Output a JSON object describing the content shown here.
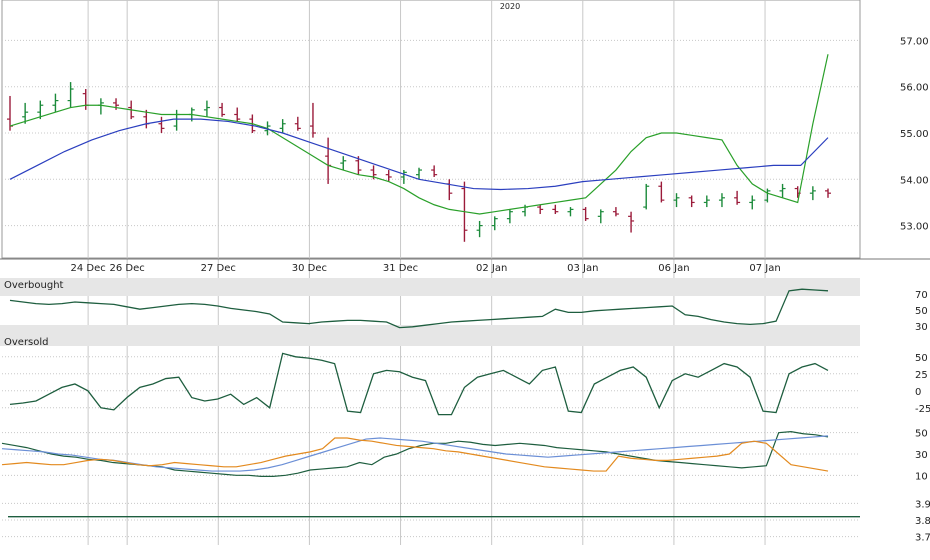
{
  "chart_data": {
    "type": "candlestick",
    "year_label": "2020",
    "x_ticks": [
      {
        "label": "24 Dec",
        "i": 6
      },
      {
        "label": "26 Dec",
        "i": 9
      },
      {
        "label": "27 Dec",
        "i": 16
      },
      {
        "label": "30 Dec",
        "i": 23
      },
      {
        "label": "31 Dec",
        "i": 30
      },
      {
        "label": "02 Jan",
        "i": 37
      },
      {
        "label": "03 Jan",
        "i": 44
      },
      {
        "label": "06 Jan",
        "i": 51
      },
      {
        "label": "07 Jan",
        "i": 58
      }
    ],
    "price": {
      "ylim": [
        52.3,
        57.7
      ],
      "yticks": [
        "57.00",
        "56.00",
        "55.00",
        "54.00",
        "53.00"
      ],
      "grid": true,
      "candles": [
        [
          55.3,
          55.8,
          55.05,
          55.15
        ],
        [
          55.35,
          55.65,
          55.2,
          55.45
        ],
        [
          55.45,
          55.7,
          55.3,
          55.6
        ],
        [
          55.6,
          55.85,
          55.45,
          55.7
        ],
        [
          55.7,
          56.1,
          55.55,
          55.95
        ],
        [
          55.85,
          55.95,
          55.5,
          55.6
        ],
        [
          55.6,
          55.75,
          55.4,
          55.65
        ],
        [
          55.65,
          55.75,
          55.5,
          55.6
        ],
        [
          55.55,
          55.7,
          55.3,
          55.35
        ],
        [
          55.35,
          55.5,
          55.1,
          55.2
        ],
        [
          55.2,
          55.35,
          55.0,
          55.1
        ],
        [
          55.15,
          55.5,
          55.05,
          55.4
        ],
        [
          55.4,
          55.55,
          55.25,
          55.5
        ],
        [
          55.5,
          55.7,
          55.35,
          55.55
        ],
        [
          55.55,
          55.65,
          55.35,
          55.4
        ],
        [
          55.4,
          55.55,
          55.25,
          55.3
        ],
        [
          55.3,
          55.4,
          55.0,
          55.05
        ],
        [
          55.05,
          55.25,
          54.95,
          55.15
        ],
        [
          55.1,
          55.3,
          55.0,
          55.2
        ],
        [
          55.2,
          55.35,
          55.05,
          55.1
        ],
        [
          55.15,
          55.65,
          54.9,
          55.0
        ],
        [
          54.5,
          54.9,
          53.9,
          54.3
        ],
        [
          54.35,
          54.5,
          54.2,
          54.4
        ],
        [
          54.4,
          54.5,
          54.1,
          54.2
        ],
        [
          54.2,
          54.3,
          54.0,
          54.1
        ],
        [
          54.1,
          54.2,
          53.95,
          54.05
        ],
        [
          54.05,
          54.2,
          53.9,
          54.15
        ],
        [
          54.1,
          54.25,
          54.0,
          54.2
        ],
        [
          54.2,
          54.3,
          54.05,
          54.1
        ],
        [
          53.9,
          54.0,
          53.55,
          53.7
        ],
        [
          53.8,
          53.95,
          52.65,
          52.9
        ],
        [
          52.9,
          53.1,
          52.75,
          53.0
        ],
        [
          53.0,
          53.2,
          52.9,
          53.15
        ],
        [
          53.15,
          53.35,
          53.05,
          53.3
        ],
        [
          53.3,
          53.45,
          53.2,
          53.4
        ],
        [
          53.4,
          53.45,
          53.25,
          53.35
        ],
        [
          53.35,
          53.45,
          53.25,
          53.3
        ],
        [
          53.3,
          53.4,
          53.2,
          53.35
        ],
        [
          53.35,
          53.4,
          53.1,
          53.15
        ],
        [
          53.2,
          53.35,
          53.05,
          53.3
        ],
        [
          53.3,
          53.4,
          53.2,
          53.25
        ],
        [
          53.2,
          53.3,
          52.85,
          53.1
        ],
        [
          53.4,
          53.9,
          53.35,
          53.85
        ],
        [
          53.85,
          53.95,
          53.5,
          53.55
        ],
        [
          53.55,
          53.7,
          53.4,
          53.6
        ],
        [
          53.6,
          53.65,
          53.4,
          53.5
        ],
        [
          53.5,
          53.65,
          53.4,
          53.55
        ],
        [
          53.55,
          53.7,
          53.4,
          53.6
        ],
        [
          53.6,
          53.75,
          53.45,
          53.5
        ],
        [
          53.5,
          53.65,
          53.35,
          53.55
        ],
        [
          53.55,
          53.8,
          53.5,
          53.75
        ],
        [
          53.75,
          53.9,
          53.6,
          53.8
        ],
        [
          53.8,
          53.85,
          53.6,
          53.7
        ],
        [
          53.7,
          53.85,
          53.55,
          53.75
        ],
        [
          53.75,
          53.8,
          53.6,
          53.7
        ]
      ],
      "ma_fast": [
        55.15,
        55.25,
        55.35,
        55.45,
        55.55,
        55.6,
        55.6,
        55.55,
        55.5,
        55.45,
        55.4,
        55.4,
        55.4,
        55.35,
        55.3,
        55.25,
        55.2,
        55.1,
        54.9,
        54.7,
        54.5,
        54.3,
        54.2,
        54.1,
        54.05,
        53.95,
        53.8,
        53.6,
        53.45,
        53.35,
        53.3,
        53.25,
        53.3,
        53.35,
        53.4,
        53.45,
        53.5,
        53.55,
        53.6,
        53.9,
        54.2,
        54.6,
        54.9,
        55.0,
        55.0,
        54.95,
        54.9,
        54.85,
        54.3,
        53.9,
        53.7,
        53.6,
        53.5,
        55.2,
        56.7
      ],
      "ma_slow": [
        54.0,
        54.3,
        54.6,
        54.85,
        55.05,
        55.2,
        55.3,
        55.3,
        55.25,
        55.15,
        55.0,
        54.8,
        54.6,
        54.4,
        54.2,
        54.0,
        53.9,
        53.8,
        53.78,
        53.8,
        53.85,
        53.95,
        54.0,
        54.05,
        54.1,
        54.15,
        54.2,
        54.25,
        54.3,
        54.3,
        54.9
      ]
    },
    "oscillator1": {
      "labels": [
        "Overbought",
        "Oversold"
      ],
      "yticks": [
        "70",
        "50",
        "30"
      ],
      "ylim": [
        20,
        80
      ],
      "values": [
        62,
        60,
        58,
        57,
        58,
        60,
        59,
        58,
        57,
        54,
        51,
        53,
        55,
        57,
        58,
        57,
        55,
        52,
        50,
        48,
        45,
        35,
        34,
        33,
        35,
        36,
        37,
        37,
        36,
        35,
        28,
        29,
        31,
        33,
        35,
        36,
        37,
        38,
        39,
        40,
        41,
        42,
        51,
        47,
        47,
        49,
        50,
        51,
        52,
        53,
        54,
        55,
        44,
        42,
        38,
        35,
        33,
        32,
        33,
        36,
        74,
        76,
        75,
        74
      ]
    },
    "oscillator2": {
      "yticks": [
        "50",
        "25",
        "0",
        "-25"
      ],
      "ylim": [
        -40,
        60
      ],
      "values": [
        -20,
        -18,
        -15,
        -5,
        5,
        10,
        0,
        -25,
        -28,
        -10,
        5,
        10,
        18,
        20,
        -10,
        -15,
        -12,
        -5,
        -20,
        -10,
        -25,
        55,
        50,
        48,
        45,
        40,
        -30,
        -32,
        25,
        30,
        28,
        20,
        15,
        -35,
        -35,
        5,
        20,
        25,
        30,
        20,
        10,
        30,
        35,
        -30,
        -32,
        10,
        20,
        30,
        35,
        20,
        -25,
        15,
        25,
        20,
        30,
        40,
        35,
        20,
        -30,
        -32,
        25,
        35,
        40,
        30
      ],
      "values2": [
        -12,
        -10,
        -8,
        -5,
        -2,
        0,
        -5,
        -10,
        -12,
        -8,
        -3,
        0,
        3,
        5,
        -3,
        -5,
        -4,
        -2,
        -8,
        -5,
        -10
      ]
    },
    "oscillator3": {
      "yticks": [
        "50",
        "30",
        "10"
      ],
      "ylim": [
        0,
        60
      ],
      "series": [
        {
          "values": [
            40,
            38,
            36,
            33,
            30,
            28,
            27,
            25,
            24,
            22,
            21,
            20,
            19,
            18,
            15,
            14,
            13,
            12,
            11,
            10,
            10,
            9,
            9,
            10,
            12,
            15,
            16,
            17,
            18,
            22,
            20,
            27,
            30,
            35,
            38,
            40,
            40,
            42,
            41,
            39,
            38,
            39,
            40,
            39,
            38,
            36,
            35,
            34,
            33,
            32,
            30,
            28,
            26,
            24,
            23,
            22,
            21,
            20,
            19,
            18,
            17,
            18,
            19,
            50,
            51,
            49,
            48,
            46
          ]
        },
        {
          "values": [
            35,
            34,
            33,
            32,
            30,
            29,
            27,
            25,
            24,
            22,
            20,
            18,
            17,
            16,
            15,
            14,
            14,
            14,
            15,
            17,
            20,
            24,
            28,
            32,
            36,
            40,
            44,
            45,
            44,
            43,
            42,
            40,
            38,
            36,
            34,
            32,
            30,
            29,
            28,
            27,
            28,
            29,
            30,
            31,
            32,
            33,
            34,
            35,
            36,
            37,
            38,
            39,
            40,
            41,
            42,
            43,
            44,
            45,
            46,
            47
          ]
        },
        {
          "values": [
            20,
            21,
            22,
            21,
            20,
            20,
            22,
            24,
            25,
            24,
            22,
            20,
            19,
            20,
            22,
            21,
            20,
            19,
            18,
            18,
            20,
            22,
            25,
            28,
            30,
            32,
            35,
            45,
            45,
            43,
            42,
            40,
            38,
            37,
            36,
            35,
            33,
            32,
            30,
            28,
            26,
            24,
            22,
            20,
            18,
            17,
            16,
            15,
            14,
            14,
            28,
            26,
            25,
            24,
            24,
            25,
            26,
            27,
            28,
            30,
            40,
            42,
            40,
            30,
            20,
            18,
            16,
            14
          ]
        }
      ]
    },
    "lower_panel": {
      "yticks": [
        "3.9",
        "3.8",
        "3.7"
      ],
      "ylim": [
        3.65,
        3.95
      ],
      "level": 3.82
    }
  },
  "colors": {
    "up": "#1b8a3a",
    "down": "#9b1b3a",
    "ma_fast": "#2aa02a",
    "ma_slow": "#2b3fbf",
    "osc_line": "#1e5e3f",
    "series_blue": "#6b8fd6",
    "series_orange": "#e38a1f",
    "grid": "#c8c8c8",
    "band": "#e6e6e6"
  }
}
